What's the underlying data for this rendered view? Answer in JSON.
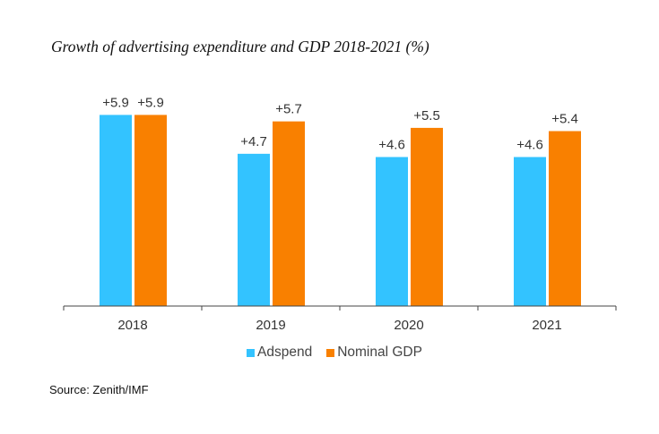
{
  "chart_data": {
    "type": "bar",
    "title": "Growth of advertising expenditure and GDP 2018-2021 (%)",
    "categories": [
      "2018",
      "2019",
      "2020",
      "2021"
    ],
    "series": [
      {
        "name": "Adspend",
        "values": [
          5.9,
          4.7,
          4.6,
          4.6
        ],
        "labels": [
          "+5.9",
          "+4.7",
          "+4.6",
          "+4.6"
        ],
        "color": "#33c3ff"
      },
      {
        "name": "Nominal GDP",
        "values": [
          5.9,
          5.7,
          5.5,
          5.4
        ],
        "labels": [
          "+5.9",
          "+5.7",
          "+5.5",
          "+5.4"
        ],
        "color": "#f98000"
      }
    ],
    "ylim": [
      0,
      6.5
    ],
    "grid": false,
    "legend_position": "bottom",
    "source": "Source: Zenith/IMF"
  }
}
